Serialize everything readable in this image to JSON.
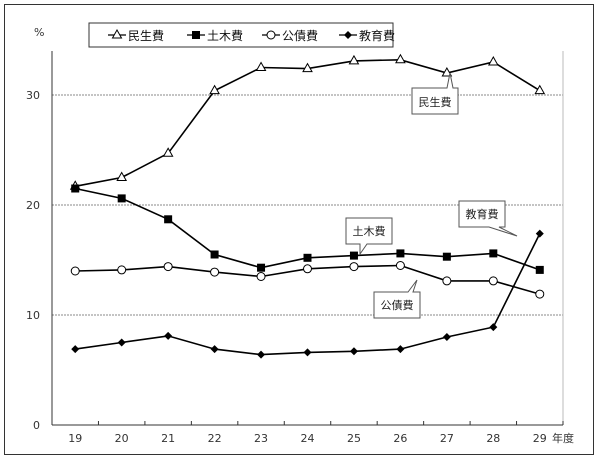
{
  "chart_data": {
    "type": "line",
    "title": "",
    "xlabel": "年度",
    "ylabel": "%",
    "categories": [
      "19",
      "20",
      "21",
      "22",
      "23",
      "24",
      "25",
      "26",
      "27",
      "28",
      "29"
    ],
    "ylim": [
      0,
      34
    ],
    "yticks": [
      "0",
      "10",
      "20",
      "30"
    ],
    "grid": "horizontal dotted at 10, 20, 30",
    "legend_position": "top",
    "series": [
      {
        "name": "民生費",
        "marker": "open-triangle",
        "values": [
          21.7,
          22.5,
          24.7,
          30.4,
          32.5,
          32.4,
          33.1,
          33.2,
          32.0,
          33.0,
          30.4
        ]
      },
      {
        "name": "土木費",
        "marker": "filled-square",
        "values": [
          21.5,
          20.6,
          18.7,
          15.5,
          14.3,
          15.2,
          15.4,
          15.6,
          15.3,
          15.6,
          14.1
        ]
      },
      {
        "name": "公債費",
        "marker": "open-circle",
        "values": [
          14.0,
          14.1,
          14.4,
          13.9,
          13.5,
          14.2,
          14.4,
          14.5,
          13.1,
          13.1,
          11.9
        ]
      },
      {
        "name": "教育費",
        "marker": "filled-diamond",
        "values": [
          6.9,
          7.5,
          8.1,
          6.9,
          6.4,
          6.6,
          6.7,
          6.9,
          8.0,
          8.9,
          17.4
        ]
      }
    ],
    "annotations": [
      {
        "text": "民生費",
        "x": "27"
      },
      {
        "text": "土木費",
        "x": "25"
      },
      {
        "text": "公債費",
        "x": "26"
      },
      {
        "text": "教育費",
        "x": "29"
      }
    ]
  },
  "labels": {
    "y_unit": "%",
    "x_unit": "年度",
    "legend": [
      "民生費",
      "土木費",
      "公債費",
      "教育費"
    ],
    "callouts": {
      "minsei": "民生費",
      "doboku": "土木費",
      "kousai": "公債費",
      "kyouiku": "教育費"
    }
  }
}
